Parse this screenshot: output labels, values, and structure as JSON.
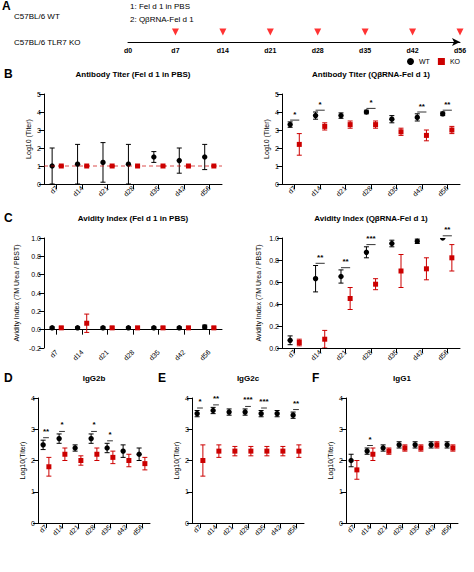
{
  "chart_data": [
    {
      "type": "timeline",
      "categories": [
        "d0",
        "d7",
        "d14",
        "d21",
        "d28",
        "d35",
        "d42",
        "d56"
      ],
      "injections": [
        "d7",
        "d14",
        "d21",
        "d28",
        "d35",
        "d42",
        "d56"
      ],
      "color": "#ff0000",
      "annotations": [
        "A",
        "C57BL/6 WT",
        "C57BL/6 TLR7 KO",
        "1: Fel d 1 in PBS",
        "2: QβRNA-Fel d 1"
      ]
    },
    {
      "type": "scatter",
      "title": "Antibody Titer (Fel d 1 in PBS)",
      "ylabel": "Log10 (Titer)",
      "annotations": [
        "B"
      ],
      "grid": false,
      "categories": [
        "d7",
        "d14",
        "d21",
        "d28",
        "d35",
        "d42",
        "d56"
      ],
      "ylim": [
        0,
        5
      ],
      "yticks": [
        0,
        1,
        2,
        3,
        4,
        5
      ],
      "series": [
        {
          "color": "#000000",
          "marker": "circle",
          "values": [
            1.0,
            1.1,
            1.2,
            1.1,
            1.5,
            1.3,
            1.5
          ],
          "errors": [
            1.0,
            1.1,
            1.1,
            1.1,
            0.3,
            0.7,
            0.7
          ]
        },
        {
          "color": "#cc0000",
          "marker": "square",
          "values": [
            1.0,
            1.0,
            1.0,
            1.0,
            1.0,
            1.0,
            1.0
          ],
          "errors": [
            0.0,
            0.0,
            0.0,
            0.0,
            0.0,
            0.0,
            0.0
          ]
        }
      ],
      "reference_line": {
        "y": 1.0,
        "color": "#cc0000",
        "line_style": "dashed"
      }
    },
    {
      "type": "scatter",
      "title": "Antibody Titer (QβRNA-Fel d 1)",
      "ylabel": "Log10 (Titer)",
      "grid": false,
      "legend": "upper right",
      "categories": [
        "d7",
        "d14",
        "d21",
        "d28",
        "d35",
        "d42",
        "d56"
      ],
      "ylim": [
        0,
        5
      ],
      "yticks": [
        0,
        1,
        2,
        3,
        4,
        5
      ],
      "series": [
        {
          "name": "WT",
          "color": "#000000",
          "marker": "circle",
          "values": [
            3.3,
            3.8,
            3.8,
            4.0,
            3.6,
            3.7,
            3.9
          ],
          "errors": [
            0.15,
            0.2,
            0.15,
            0.1,
            0.2,
            0.2,
            0.1
          ]
        },
        {
          "name": "KO",
          "color": "#cc0000",
          "marker": "square",
          "values": [
            2.2,
            3.2,
            3.3,
            3.3,
            2.9,
            2.7,
            3.0
          ],
          "errors": [
            0.6,
            0.2,
            0.2,
            0.2,
            0.2,
            0.3,
            0.2
          ]
        }
      ],
      "significance": [
        "*",
        "*",
        null,
        "*",
        null,
        "**",
        "**"
      ]
    },
    {
      "type": "scatter",
      "title": "Avidity Index (Fel d 1 in PBS)",
      "ylabel": "Avidity Index (7M Urea / PBST)",
      "annotations": [
        "C"
      ],
      "grid": false,
      "categories": [
        "d7",
        "d14",
        "d21",
        "d28",
        "d35",
        "d42",
        "d56"
      ],
      "ylim": [
        -0.2,
        1.0
      ],
      "yticks": [
        {
          "value": -0.2,
          "label": "-0.2"
        },
        {
          "value": 0.0,
          "label": "0.0"
        },
        0.2,
        0.4,
        0.6,
        0.8,
        {
          "value": 1.0,
          "label": "1.0"
        }
      ],
      "series": [
        {
          "color": "#000000",
          "marker": "circle",
          "values": [
            0.02,
            0.02,
            0.02,
            0.02,
            0.02,
            0.02,
            0.03
          ],
          "errors": [
            0.01,
            0.01,
            0.01,
            0.01,
            0.01,
            0.01,
            0.02
          ]
        },
        {
          "color": "#cc0000",
          "marker": "square",
          "values": [
            0.02,
            0.07,
            0.02,
            0.02,
            0.02,
            0.02,
            0.02
          ],
          "errors": [
            0.01,
            0.1,
            0.01,
            0.01,
            0.01,
            0.01,
            0.01
          ]
        }
      ]
    },
    {
      "type": "scatter",
      "title": "Avidity Index (QβRNA-Fel d 1)",
      "ylabel": "Avidity Index (7M Urea / PBST)",
      "grid": false,
      "categories": [
        "d7",
        "d14",
        "d21",
        "d28",
        "d35",
        "d42",
        "d56"
      ],
      "ylim": [
        0,
        1.0
      ],
      "yticks": [
        {
          "value": 0.0,
          "label": "0.0"
        },
        0.2,
        0.4,
        0.6,
        0.8,
        {
          "value": 1.0,
          "label": "1.0"
        }
      ],
      "series": [
        {
          "color": "#000000",
          "marker": "circle",
          "values": [
            0.07,
            0.63,
            0.65,
            0.87,
            0.95,
            0.97,
            1.0
          ],
          "errors": [
            0.04,
            0.12,
            0.06,
            0.05,
            0.03,
            0.02,
            0.0
          ]
        },
        {
          "color": "#cc0000",
          "marker": "square",
          "values": [
            0.05,
            0.08,
            0.45,
            0.58,
            0.7,
            0.72,
            0.82
          ],
          "errors": [
            0.03,
            0.08,
            0.1,
            0.05,
            0.15,
            0.1,
            0.12
          ]
        }
      ],
      "significance": [
        null,
        "**",
        "**",
        "***",
        null,
        null,
        "**"
      ]
    },
    {
      "type": "scatter",
      "title": "IgG2b",
      "ylabel": "Log10(Titer)",
      "annotations": [
        "D"
      ],
      "grid": false,
      "categories": [
        "d7",
        "d14",
        "d21",
        "d28",
        "d35",
        "d42",
        "d56"
      ],
      "ylim": [
        0,
        4
      ],
      "yticks": [
        0,
        1,
        2,
        3,
        4
      ],
      "series": [
        {
          "color": "#000000",
          "marker": "circle",
          "values": [
            2.5,
            2.7,
            2.4,
            2.7,
            2.4,
            2.3,
            2.2
          ],
          "errors": [
            0.15,
            0.15,
            0.1,
            0.15,
            0.15,
            0.2,
            0.2
          ]
        },
        {
          "color": "#cc0000",
          "marker": "square",
          "values": [
            1.8,
            2.2,
            2.0,
            2.2,
            2.1,
            2.0,
            1.9
          ],
          "errors": [
            0.3,
            0.2,
            0.15,
            0.2,
            0.2,
            0.2,
            0.2
          ]
        }
      ],
      "significance": [
        "**",
        "*",
        null,
        "*",
        "*",
        null,
        null
      ]
    },
    {
      "type": "scatter",
      "title": "IgG2c",
      "ylabel": "Log10(Titer)",
      "annotations": [
        "E"
      ],
      "grid": false,
      "categories": [
        "d7",
        "d14",
        "d21",
        "d28",
        "d35",
        "d42",
        "d56"
      ],
      "ylim": [
        0,
        4
      ],
      "yticks": [
        0,
        1,
        2,
        3,
        4
      ],
      "series": [
        {
          "color": "#000000",
          "marker": "circle",
          "values": [
            3.5,
            3.6,
            3.55,
            3.55,
            3.5,
            3.5,
            3.45
          ],
          "errors": [
            0.1,
            0.1,
            0.1,
            0.1,
            0.1,
            0.1,
            0.1
          ]
        },
        {
          "color": "#cc0000",
          "marker": "square",
          "values": [
            2.0,
            2.3,
            2.3,
            2.3,
            2.3,
            2.3,
            2.3
          ],
          "errors": [
            0.5,
            0.2,
            0.15,
            0.15,
            0.15,
            0.15,
            0.2
          ]
        }
      ],
      "significance": [
        "*",
        "**",
        null,
        "***",
        "***",
        null,
        "**"
      ]
    },
    {
      "type": "scatter",
      "title": "IgG1",
      "ylabel": "Log10(Titer)",
      "annotations": [
        "F"
      ],
      "grid": false,
      "categories": [
        "d7",
        "d14",
        "d21",
        "d28",
        "d35",
        "d42",
        "d56"
      ],
      "ylim": [
        0,
        4
      ],
      "yticks": [
        0,
        1,
        2,
        3,
        4
      ],
      "series": [
        {
          "color": "#000000",
          "marker": "circle",
          "values": [
            2.0,
            2.3,
            2.4,
            2.5,
            2.5,
            2.5,
            2.5
          ],
          "errors": [
            0.2,
            0.1,
            0.1,
            0.1,
            0.1,
            0.1,
            0.1
          ]
        },
        {
          "color": "#cc0000",
          "marker": "square",
          "values": [
            1.7,
            2.2,
            2.3,
            2.4,
            2.4,
            2.5,
            2.4
          ],
          "errors": [
            0.3,
            0.2,
            0.1,
            0.1,
            0.1,
            0.1,
            0.1
          ]
        }
      ],
      "significance": [
        null,
        "*",
        null,
        null,
        null,
        null,
        null
      ]
    }
  ]
}
